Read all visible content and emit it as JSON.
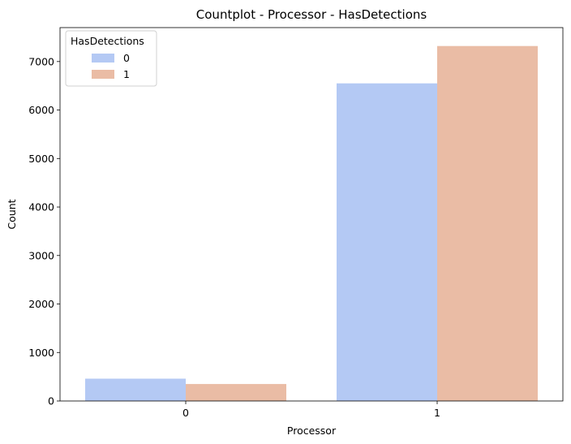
{
  "chart_data": {
    "type": "bar",
    "title": "Countplot - Processor - HasDetections",
    "xlabel": "Processor",
    "ylabel": "Count",
    "categories": [
      "0",
      "1"
    ],
    "series": [
      {
        "name": "0",
        "color": "#b4c9f4",
        "values": [
          460,
          6550
        ]
      },
      {
        "name": "1",
        "color": "#eabca5",
        "values": [
          350,
          7320
        ]
      }
    ],
    "ylim": [
      0,
      7700
    ],
    "yticks": [
      0,
      1000,
      2000,
      3000,
      4000,
      5000,
      6000,
      7000
    ],
    "legend": {
      "title": "HasDetections",
      "position": "top-left"
    },
    "grid": false
  }
}
